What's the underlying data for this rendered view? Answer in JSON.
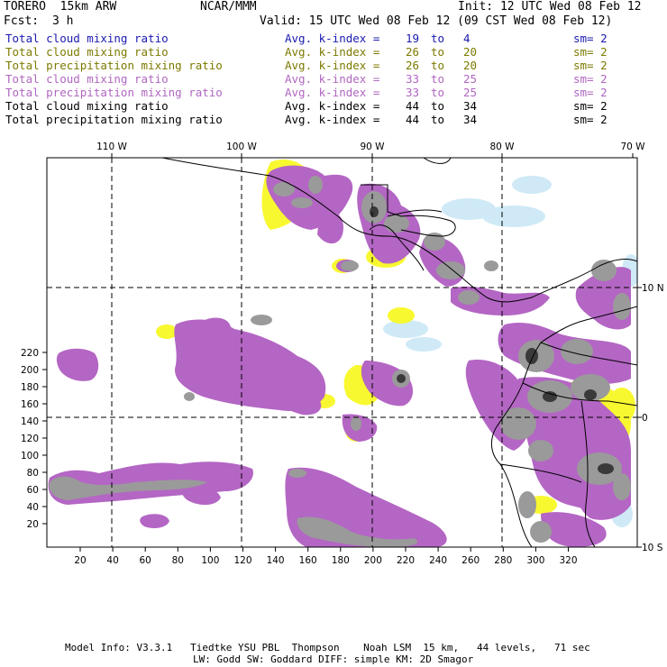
{
  "header": {
    "model": "TORERO  15km ARW",
    "org": "NCAR/MMM",
    "init": "Init: 12 UTC Wed 08 Feb 12",
    "fcst_label": "Fcst:",
    "fcst_value": "3 h",
    "valid": "Valid: 15 UTC Wed 08 Feb 12 (09 CST Wed 08 Feb 12)"
  },
  "legend": [
    {
      "field": "Total cloud mixing ratio",
      "stat": "Avg. k-index = ",
      "a": "19",
      "to": "to",
      "b": "4",
      "sm": "sm= 2",
      "color": "blue"
    },
    {
      "field": "Total cloud mixing ratio",
      "stat": "Avg. k-index = ",
      "a": "26",
      "to": "to",
      "b": "20",
      "sm": "sm= 2",
      "color": "olive"
    },
    {
      "field": "Total precipitation mixing ratio",
      "stat": "Avg. k-index = ",
      "a": "26",
      "to": "to",
      "b": "20",
      "sm": "sm= 2",
      "color": "olive"
    },
    {
      "field": "Total cloud mixing ratio",
      "stat": "Avg. k-index = ",
      "a": "33",
      "to": "to",
      "b": "25",
      "sm": "sm= 2",
      "color": "purple"
    },
    {
      "field": "Total precipitation mixing ratio",
      "stat": "Avg. k-index = ",
      "a": "33",
      "to": "to",
      "b": "25",
      "sm": "sm= 2",
      "color": "purple"
    },
    {
      "field": "Total cloud mixing ratio",
      "stat": "Avg. k-index = ",
      "a": "44",
      "to": "to",
      "b": "34",
      "sm": "sm= 2",
      "color": "black"
    },
    {
      "field": "Total precipitation mixing ratio",
      "stat": "Avg. k-index = ",
      "a": "44",
      "to": "to",
      "b": "34",
      "sm": "sm= 2",
      "color": "black"
    }
  ],
  "map": {
    "lon_labels": [
      "110 W",
      "100 W",
      "90 W",
      "80 W",
      "70 W"
    ],
    "lat_labels": [
      "10 N",
      "0",
      "10 S"
    ],
    "y_ticks": [
      "220",
      "200",
      "180",
      "160",
      "140",
      "120",
      "100",
      "80",
      "60",
      "40",
      "20"
    ],
    "x_ticks": [
      "20",
      "40",
      "60",
      "80",
      "100",
      "120",
      "140",
      "160",
      "180",
      "200",
      "220",
      "240",
      "260",
      "280",
      "300",
      "320"
    ],
    "colors": {
      "light_blue": "#cfeaf6",
      "yellow": "#f8f830",
      "purple": "#b466c4",
      "gray": "#9a9a9a",
      "dark": "#3a3a3a"
    }
  },
  "footer": {
    "line1": "Model Info: V3.3.1   Tiedtke YSU PBL  Thompson    Noah LSM  15 km,   44 levels,   71 sec",
    "line2": "LW: Godd SW: Goddard DIFF: simple KM: 2D Smagor"
  }
}
